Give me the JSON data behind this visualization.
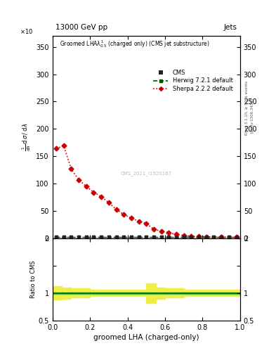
{
  "title_top": "13000 GeV pp",
  "title_right": "Jets",
  "xlabel": "groomed LHA (charged-only)",
  "ylabel_ratio": "Ratio to CMS",
  "right_label_top": "Rivet 3.1.10, ≥ 500k events",
  "right_label_bot": "[arXiv:1306.3436]",
  "watermark": "CMS_2021_I1920187",
  "cms_x": [
    0.02,
    0.06,
    0.1,
    0.14,
    0.18,
    0.22,
    0.26,
    0.3,
    0.34,
    0.38,
    0.42,
    0.46,
    0.5,
    0.54,
    0.58,
    0.62,
    0.66,
    0.7,
    0.74,
    0.78,
    0.82,
    0.86,
    0.9,
    0.94,
    0.98
  ],
  "cms_y": [
    2.0,
    2.0,
    2.0,
    2.0,
    2.0,
    2.0,
    2.0,
    2.0,
    2.0,
    2.0,
    2.0,
    2.0,
    2.0,
    2.0,
    2.0,
    2.0,
    2.0,
    2.0,
    2.0,
    2.0,
    2.0,
    2.0,
    2.0,
    2.0,
    2.0
  ],
  "herwig_x": [
    0.02,
    0.06,
    0.1,
    0.14,
    0.18,
    0.22,
    0.26,
    0.3,
    0.34,
    0.38,
    0.42,
    0.46,
    0.5,
    0.54,
    0.58,
    0.62,
    0.66,
    0.7,
    0.74,
    0.78,
    0.82,
    0.86,
    0.9,
    0.94,
    0.98
  ],
  "herwig_y": [
    2.0,
    2.0,
    2.0,
    2.0,
    2.0,
    2.0,
    2.0,
    2.0,
    2.0,
    2.0,
    2.0,
    2.0,
    2.0,
    2.0,
    2.0,
    2.0,
    2.0,
    2.0,
    2.0,
    2.0,
    2.0,
    2.0,
    2.0,
    2.0,
    2.0
  ],
  "sherpa_x": [
    0.02,
    0.06,
    0.1,
    0.14,
    0.18,
    0.22,
    0.26,
    0.3,
    0.34,
    0.38,
    0.42,
    0.46,
    0.5,
    0.54,
    0.58,
    0.62,
    0.66,
    0.7,
    0.74,
    0.78,
    0.82,
    0.9,
    0.98
  ],
  "sherpa_y": [
    164.0,
    169.0,
    127.0,
    107.0,
    95.0,
    84.0,
    76.0,
    65.0,
    53.0,
    43.5,
    37.0,
    31.0,
    27.0,
    16.5,
    13.0,
    10.0,
    7.0,
    5.0,
    3.5,
    3.0,
    2.5,
    2.0,
    2.0
  ],
  "ratio_x_edges": [
    0.0,
    0.05,
    0.1,
    0.15,
    0.2,
    0.25,
    0.3,
    0.35,
    0.4,
    0.45,
    0.5,
    0.55,
    0.6,
    0.65,
    0.7,
    0.75,
    0.8,
    0.85,
    0.9,
    0.95,
    1.0
  ],
  "ratio_y": [
    1.0,
    1.0,
    1.0,
    1.0,
    1.0,
    1.0,
    1.0,
    1.0,
    1.0,
    1.0,
    1.0,
    1.0,
    1.0,
    1.0,
    1.0,
    1.0,
    1.0,
    1.0,
    1.0,
    1.0
  ],
  "ratio_err_green": [
    0.015,
    0.015,
    0.015,
    0.015,
    0.015,
    0.015,
    0.015,
    0.015,
    0.015,
    0.015,
    0.015,
    0.015,
    0.015,
    0.015,
    0.015,
    0.015,
    0.015,
    0.015,
    0.015,
    0.015
  ],
  "ratio_err_yellow": [
    0.12,
    0.1,
    0.08,
    0.08,
    0.06,
    0.06,
    0.06,
    0.06,
    0.06,
    0.06,
    0.18,
    0.1,
    0.08,
    0.08,
    0.06,
    0.06,
    0.06,
    0.06,
    0.06,
    0.06
  ],
  "ylim_main": [
    0,
    370
  ],
  "yticks_main": [
    0,
    50,
    100,
    150,
    200,
    250,
    300,
    350
  ],
  "ylim_ratio": [
    0.5,
    2.0
  ],
  "yticks_ratio": [
    0.5,
    1.0,
    1.5,
    2.0
  ],
  "color_cms": "#222222",
  "color_herwig": "#005500",
  "color_sherpa": "#cc0000",
  "color_green_band": "#44bb44",
  "color_yellow_band": "#eeee44",
  "color_bg": "#ffffff"
}
